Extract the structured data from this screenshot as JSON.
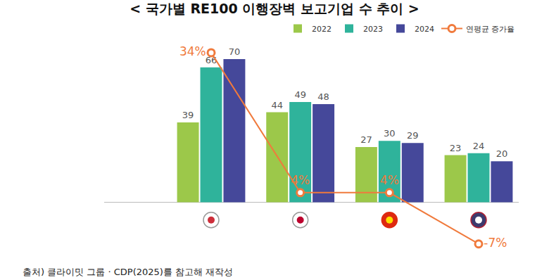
{
  "chart_data": {
    "type": "bar",
    "title": "< 국가별 RE100 이행장벽 보고기업 수 추이 >",
    "annotations": [
      "출처) 클라이밋 그룹 · CDP(2025)를 참고해 재작성"
    ],
    "categories": [
      null,
      null,
      null,
      null
    ],
    "series": [
      {
        "name": "2022",
        "color": "#9cc84a",
        "values": [
          39,
          44,
          27,
          23
        ]
      },
      {
        "name": "2023",
        "color": "#2fb39b",
        "values": [
          66,
          49,
          30,
          24
        ]
      },
      {
        "name": "2024",
        "color": "#45489a",
        "values": [
          70,
          48,
          29,
          20
        ]
      },
      {
        "name": "연평균 증가율",
        "type": "line",
        "axis": "y2",
        "color": "#f07a3c",
        "marker": "circle-open",
        "values": [
          34,
          4,
          4,
          -7
        ],
        "value_labels": [
          "34%",
          "4%",
          "4%",
          "-7%"
        ]
      }
    ],
    "ylim": [
      -25,
      80
    ],
    "y2lim": [
      -9,
      37
    ],
    "grid": false,
    "legend": "top right",
    "data_labels": true,
    "tick_labels": false
  }
}
